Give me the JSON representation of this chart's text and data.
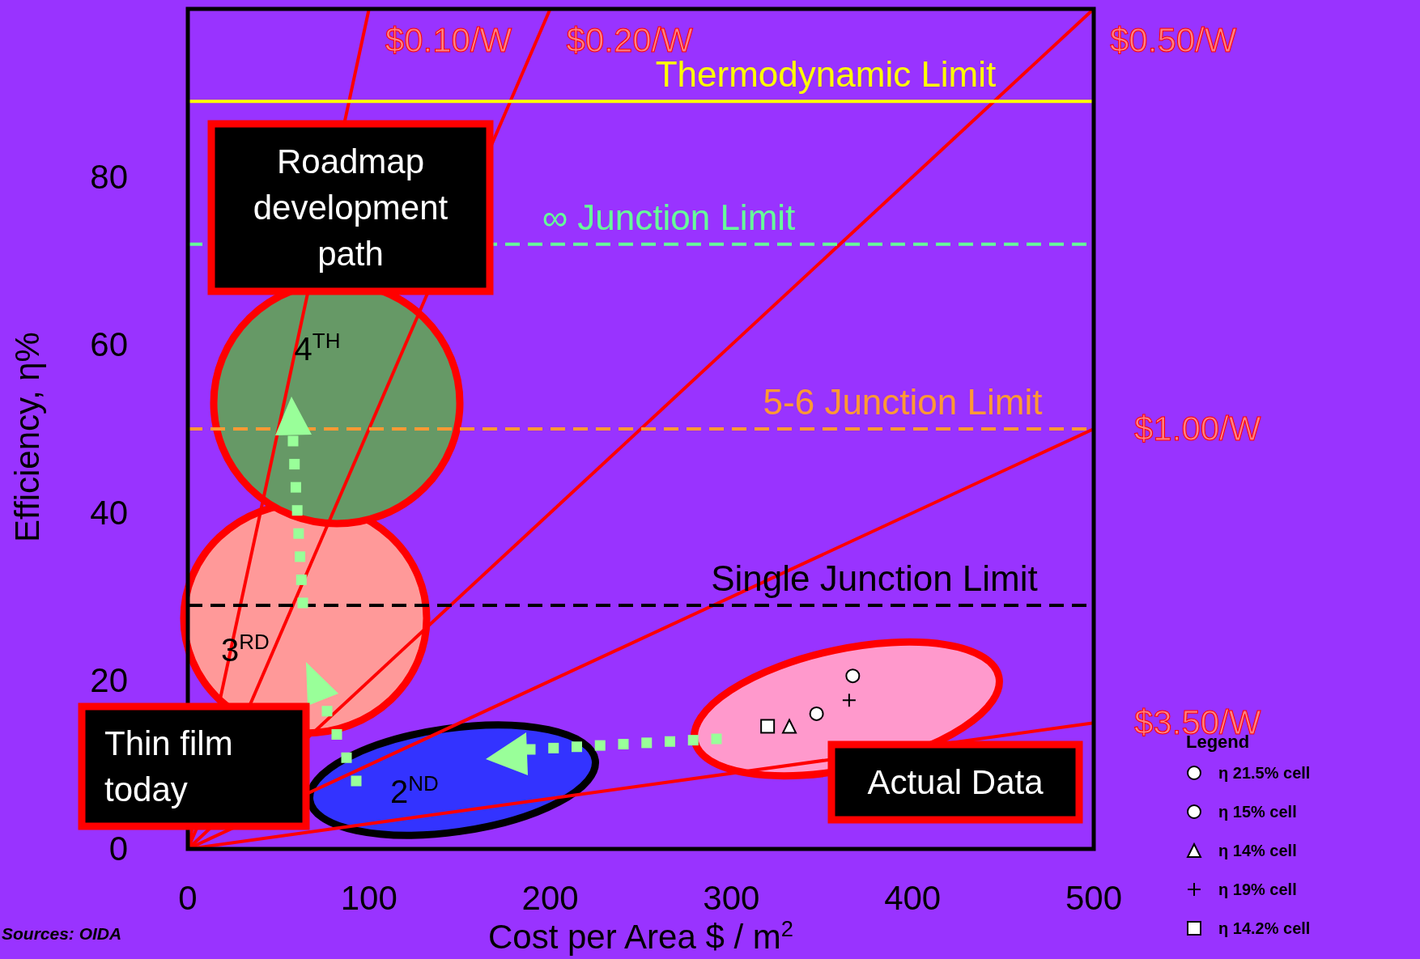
{
  "chart_data": {
    "type": "line",
    "xlabel": "Cost per Area  $ / m$^{2}$",
    "ylabel": "Efficiency, η%",
    "xlim": [
      0,
      500
    ],
    "ylim": [
      0,
      100
    ],
    "xticks": [
      0,
      100,
      200,
      300,
      400,
      500
    ],
    "yticks": [
      0,
      20,
      40,
      60,
      80
    ],
    "grid": false,
    "legend": "right",
    "legend_title": "Legend",
    "series": [
      {
        "name": "$0.10/W",
        "color": "#ff0000",
        "x": [
          0,
          100
        ],
        "values": [
          0,
          100
        ]
      },
      {
        "name": "$0.20/W",
        "color": "#ff0000",
        "x": [
          0,
          200
        ],
        "values": [
          0,
          100
        ]
      },
      {
        "name": "$0.50/W",
        "color": "#ff0000",
        "x": [
          0,
          500
        ],
        "values": [
          0,
          100
        ]
      },
      {
        "name": "$1.00/W",
        "color": "#ff0000",
        "x": [
          0,
          500
        ],
        "values": [
          0,
          50
        ]
      },
      {
        "name": "$3.50/W",
        "color": "#ff0000",
        "x": [
          0,
          500
        ],
        "values": [
          0,
          15
        ]
      },
      {
        "type": "scatter",
        "name": "η 21.5% cell",
        "color": "#000000",
        "marker": "circle",
        "x": [
          367
        ],
        "values": [
          20.6
        ]
      },
      {
        "type": "scatter",
        "name": "η 15% cell",
        "color": "#000000",
        "marker": "circle",
        "x": [
          347
        ],
        "values": [
          16.1
        ]
      },
      {
        "type": "scatter",
        "name": "η 14% cell",
        "color": "#000000",
        "marker": "triangle",
        "x": [
          332
        ],
        "values": [
          14.6
        ]
      },
      {
        "type": "scatter",
        "name": "η 19% cell",
        "color": "#000000",
        "marker": "cross",
        "x": [
          365
        ],
        "values": [
          17.7
        ]
      },
      {
        "type": "scatter",
        "name": "η 14.2% cell",
        "color": "#000000",
        "marker": "square",
        "x": [
          320
        ],
        "values": [
          14.6
        ]
      }
    ],
    "ref_lines": [
      {
        "axis": "y",
        "value": 89,
        "label": "Thermodynamic Limit",
        "color": "#ffff00",
        "line_style": "solid"
      },
      {
        "axis": "y",
        "value": 72,
        "label": "∞ Junction Limit",
        "color": "#66ff99",
        "line_style": "dashed"
      },
      {
        "axis": "y",
        "value": 50,
        "label": "5-6 Junction Limit",
        "color": "#ff9933",
        "line_style": "dashed"
      },
      {
        "axis": "y",
        "value": 29,
        "label": "Single Junction Limit",
        "color": "#000000",
        "line_style": "dashed"
      }
    ],
    "annotations": [
      "4$^{TH}$",
      "3$^{RD}$",
      "2$^{ND}$",
      "Roadmap development path",
      "Thin film today",
      "Actual Data",
      "Sources: OIDA"
    ]
  }
}
